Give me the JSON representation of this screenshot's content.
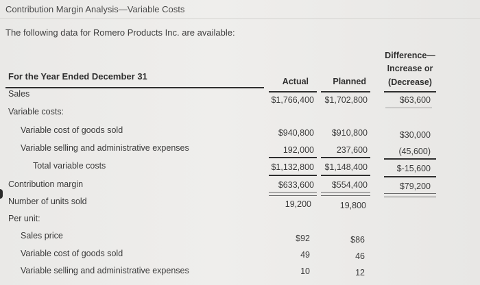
{
  "title": "Contribution Margin Analysis—Variable Costs",
  "intro": "The following data for Romero Products Inc. are available:",
  "header": {
    "period": "For the Year Ended December 31",
    "actual": "Actual",
    "planned": "Planned",
    "diff_line1": "Difference—",
    "diff_line2": "Increase or",
    "diff_line3": "(Decrease)"
  },
  "rows": {
    "sales": {
      "label": "Sales",
      "actual": "$1,766,400",
      "planned": "$1,702,800",
      "diff": "$63,600"
    },
    "variable_costs": {
      "label": "Variable costs:"
    },
    "vcogs": {
      "label": "Variable cost of goods sold",
      "actual": "$940,800",
      "planned": "$910,800",
      "diff": "$30,000"
    },
    "vsae": {
      "label": "Variable selling and administrative expenses",
      "actual": "192,000",
      "planned": "237,600",
      "diff": "(45,600)"
    },
    "total_vc": {
      "label": "Total variable costs",
      "actual": "$1,132,800",
      "planned": "$1,148,400",
      "diff": "$-15,600"
    },
    "contribution": {
      "label": "Contribution margin",
      "actual": "$633,600",
      "planned": "$554,400",
      "diff": "$79,200"
    },
    "units": {
      "label": "Number of units sold",
      "actual": "19,200",
      "planned": "19,800"
    },
    "per_unit": {
      "label": "Per unit:"
    },
    "price": {
      "label": "Sales price",
      "actual": "$92",
      "planned": "$86"
    },
    "unit_vcogs": {
      "label": "Variable cost of goods sold",
      "actual": "49",
      "planned": "46"
    },
    "unit_vsae": {
      "label": "Variable selling and administrative expenses",
      "actual": "10",
      "planned": "12"
    }
  }
}
